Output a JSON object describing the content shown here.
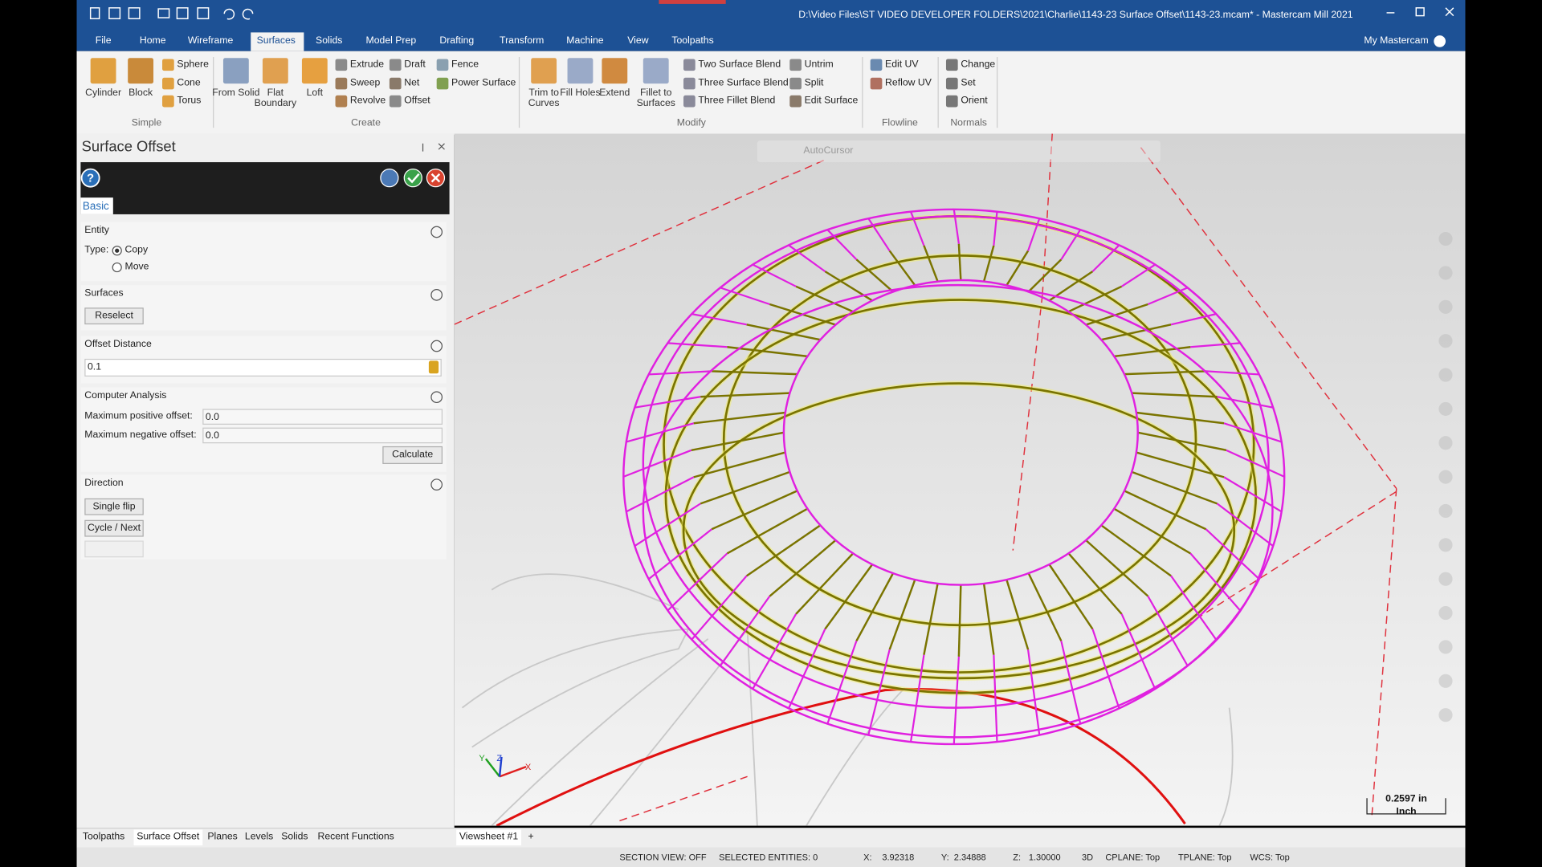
{
  "window": {
    "title": "D:\\Video Files\\ST VIDEO DEVELOPER FOLDERS\\2021\\Charlie\\1143-23 Surface Offset\\1143-23.mcam* - Mastercam Mill 2021",
    "account": "My Mastercam"
  },
  "tabs": [
    "File",
    "Home",
    "Wireframe",
    "Surfaces",
    "Solids",
    "Model Prep",
    "Drafting",
    "Transform",
    "Machine",
    "View",
    "Toolpaths"
  ],
  "ribbon": {
    "groups": [
      {
        "label": "Simple",
        "items": [
          "Cylinder",
          "Block",
          "Sphere",
          "Cone",
          "Torus"
        ]
      },
      {
        "label": "Create",
        "items": [
          "From Solid",
          "Flat Boundary",
          "Loft",
          "Extrude",
          "Sweep",
          "Revolve",
          "Draft",
          "Net",
          "Offset",
          "Fence",
          "Power Surface"
        ]
      },
      {
        "label": "Modify",
        "items": [
          "Trim to Curves",
          "Fill Holes",
          "Extend",
          "Fillet to Surfaces",
          "Two Surface Blend",
          "Three Surface Blend",
          "Three Fillet Blend",
          "Untrim",
          "Split",
          "Edit Surface"
        ]
      },
      {
        "label": "Flowline",
        "items": [
          "Edit UV",
          "Reflow UV"
        ]
      },
      {
        "label": "Normals",
        "items": [
          "Change",
          "Set",
          "Orient"
        ]
      }
    ]
  },
  "panel": {
    "title": "Surface Offset",
    "tab": "Basic",
    "entity": {
      "title": "Entity",
      "type_label": "Type:",
      "options": [
        "Copy",
        "Move"
      ]
    },
    "surfaces": {
      "title": "Surfaces",
      "button": "Reselect"
    },
    "offset": {
      "title": "Offset Distance",
      "value": "0.1"
    },
    "analysis": {
      "title": "Computer Analysis",
      "fields": [
        {
          "label": "Maximum positive offset:",
          "value": "0.0"
        },
        {
          "label": "Maximum negative offset:",
          "value": "0.0"
        }
      ],
      "button": "Calculate"
    },
    "direction": {
      "title": "Direction",
      "buttons": [
        "Single flip",
        "Cycle / Next"
      ]
    }
  },
  "bottom_tabs": [
    "Toolpaths",
    "Surface Offset",
    "Planes",
    "Levels",
    "Solids",
    "Recent Functions"
  ],
  "viewsheet": {
    "tab": "Viewsheet #1",
    "add": "+"
  },
  "status": {
    "section_view": "SECTION VIEW: OFF",
    "selected": "SELECTED ENTITIES: 0",
    "x": {
      "label": "X:",
      "value": "3.92318"
    },
    "y": {
      "label": "Y:",
      "value": "2.34888"
    },
    "z": {
      "label": "Z:",
      "value": "1.30000"
    },
    "mode": "3D",
    "cplane": "CPLANE: Top",
    "tplane": "TPLANE: Top",
    "wcs": "WCS: Top"
  },
  "viewport": {
    "autocursor": "AutoCursor",
    "scale": "0.2597 in",
    "units": "Inch",
    "axes": {
      "x": "X",
      "y": "Y",
      "z": "Z"
    }
  }
}
